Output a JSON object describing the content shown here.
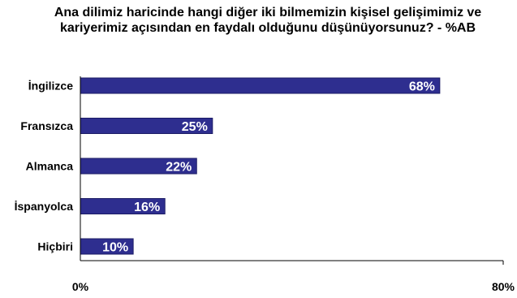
{
  "chart_data": {
    "type": "bar",
    "orientation": "horizontal",
    "title": "Ana dilimiz haricinde hangi diğer iki bilmemizin kişisel gelişimimiz ve kariyerimiz açısından en faydalı olduğunu düşünüyorsunuz? - %AB",
    "categories": [
      "İngilizce",
      "Fransızca",
      "Almanca",
      "İspanyolca",
      "Hiçbiri"
    ],
    "values": [
      68,
      25,
      22,
      16,
      10
    ],
    "data_labels": [
      "68%",
      "25%",
      "22%",
      "16%",
      "10%"
    ],
    "xlim": [
      0,
      80
    ],
    "x_tick_labels": [
      "0%",
      "80%"
    ],
    "grid": false,
    "legend": "none",
    "colors": {
      "bar_fill": "#2e2e8f",
      "bar_edge": "#1c1c66",
      "label_text": "#ffffff",
      "axis": "#000000"
    }
  }
}
